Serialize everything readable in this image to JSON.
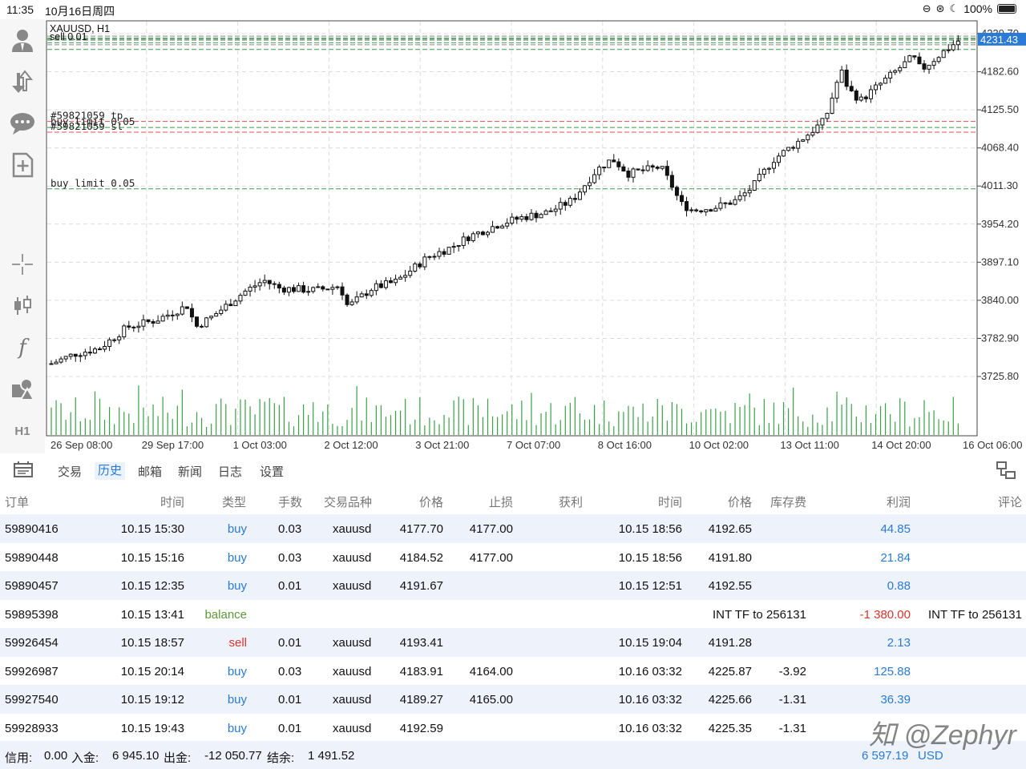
{
  "status": {
    "time": "11:35",
    "date": "10月16日周四",
    "battery": "100%"
  },
  "sidebar": {
    "icons": [
      "account-icon",
      "trade-transfer-icon",
      "chat-icon",
      "new-document-icon",
      "crosshair-icon",
      "candles-icon",
      "function-icon",
      "objects-icon"
    ],
    "timeframe": "H1"
  },
  "chart": {
    "symbol_label": "XAUUSD, H1",
    "overlay_sell": "sell 0.01",
    "current_price": "4231.43",
    "accent": "#2a7ad8",
    "price_ticks": [
      "4239.70",
      "4182.60",
      "4125.50",
      "4068.40",
      "4011.30",
      "3954.20",
      "3897.10",
      "3840.00",
      "3782.90",
      "3725.80"
    ],
    "time_ticks": [
      "26 Sep 08:00",
      "29 Sep 17:00",
      "1 Oct 03:00",
      "2 Oct 12:00",
      "3 Oct 21:00",
      "7 Oct 07:00",
      "8 Oct 16:00",
      "10 Oct 02:00",
      "13 Oct 11:00",
      "14 Oct 20:00",
      "16 Oct 06:00"
    ],
    "levels": [
      {
        "label": "#59821059 tp",
        "price": 4108,
        "color": "#e05050"
      },
      {
        "label": "buy limit 0.05",
        "price": 4099,
        "color": "#3a9a4a"
      },
      {
        "label": "#59821059 sl",
        "price": 4092,
        "color": "#e05050"
      },
      {
        "label": "buy limit 0.05",
        "price": 4007,
        "color": "#3a9a4a"
      }
    ],
    "top_levels": [
      4236,
      4233,
      4230,
      4226,
      4223,
      4216
    ]
  },
  "tabs": {
    "menu_icon": "menu-icon",
    "items": [
      "交易",
      "历史",
      "邮箱",
      "新闻",
      "日志",
      "设置"
    ],
    "active": "历史",
    "share_icon": "share-icon"
  },
  "table": {
    "headers": [
      "订单",
      "时间",
      "类型",
      "手数",
      "交易品种",
      "价格",
      "止损",
      "获利",
      "时间",
      "价格",
      "库存费",
      "利润",
      "评论"
    ],
    "rows": [
      {
        "order": "59890416",
        "open_time": "10.15 15:30",
        "type": "buy",
        "lots": "0.03",
        "symbol": "xauusd",
        "price": "4177.70",
        "sl": "4177.00",
        "tp": "",
        "close_time": "10.15 18:56",
        "close_price": "4192.65",
        "swap": "",
        "profit": "44.85",
        "comment": ""
      },
      {
        "order": "59890448",
        "open_time": "10.15 15:16",
        "type": "buy",
        "lots": "0.03",
        "symbol": "xauusd",
        "price": "4184.52",
        "sl": "4177.00",
        "tp": "",
        "close_time": "10.15 18:56",
        "close_price": "4191.80",
        "swap": "",
        "profit": "21.84",
        "comment": ""
      },
      {
        "order": "59890457",
        "open_time": "10.15 12:35",
        "type": "buy",
        "lots": "0.01",
        "symbol": "xauusd",
        "price": "4191.67",
        "sl": "",
        "tp": "",
        "close_time": "10.15 12:51",
        "close_price": "4192.55",
        "swap": "",
        "profit": "0.88",
        "comment": ""
      },
      {
        "order": "59895398",
        "open_time": "10.15 13:41",
        "type": "balance",
        "lots": "",
        "symbol": "",
        "price": "",
        "sl": "",
        "tp": "",
        "close_time": "",
        "close_price": "",
        "swap": "INT TF to 256131",
        "profit": "-1 380.00",
        "comment": "INT TF to 256131"
      },
      {
        "order": "59926454",
        "open_time": "10.15 18:57",
        "type": "sell",
        "lots": "0.01",
        "symbol": "xauusd",
        "price": "4193.41",
        "sl": "",
        "tp": "",
        "close_time": "10.15 19:04",
        "close_price": "4191.28",
        "swap": "",
        "profit": "2.13",
        "comment": ""
      },
      {
        "order": "59926987",
        "open_time": "10.15 20:14",
        "type": "buy",
        "lots": "0.03",
        "symbol": "xauusd",
        "price": "4183.91",
        "sl": "4164.00",
        "tp": "",
        "close_time": "10.16 03:32",
        "close_price": "4225.87",
        "swap": "-3.92",
        "profit": "125.88",
        "comment": ""
      },
      {
        "order": "59927540",
        "open_time": "10.15 19:12",
        "type": "buy",
        "lots": "0.01",
        "symbol": "xauusd",
        "price": "4189.27",
        "sl": "4165.00",
        "tp": "",
        "close_time": "10.16 03:32",
        "close_price": "4225.66",
        "swap": "-1.31",
        "profit": "36.39",
        "comment": ""
      },
      {
        "order": "59928933",
        "open_time": "10.15 19:43",
        "type": "buy",
        "lots": "0.01",
        "symbol": "xauusd",
        "price": "4192.59",
        "sl": "",
        "tp": "",
        "close_time": "10.16 03:32",
        "close_price": "4225.35",
        "swap": "-1.31",
        "profit": "",
        "comment": ""
      }
    ]
  },
  "footer": {
    "credit_label": "信用:",
    "credit": "0.00",
    "deposit_label": "入金:",
    "deposit": "6 945.10",
    "withdraw_label": "出金:",
    "withdraw": "-12 050.77",
    "balance_label": "结余:",
    "balance": "1 491.52",
    "total": "6 597.19",
    "currency": "USD"
  },
  "watermark": "知 @Zephyr"
}
